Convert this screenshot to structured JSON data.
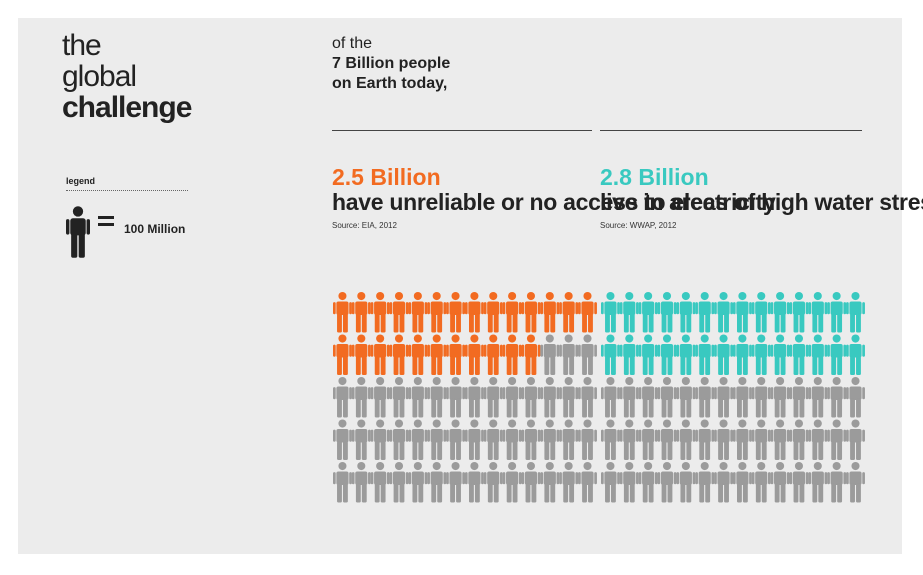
{
  "title": {
    "line1": "the",
    "line2": "global",
    "line3": "challenge"
  },
  "legend": {
    "label": "legend",
    "value": "100 Million",
    "unit_value": 100
  },
  "intro": {
    "line1": "of the",
    "line2": "7 Billion people",
    "line3": "on Earth today,"
  },
  "colors": {
    "background": "#ececec",
    "electricity": "#f26b21",
    "water": "#39c9c0",
    "inactive": "#9b9b9b",
    "icon_dark": "#222222"
  },
  "chart_data": {
    "type": "pictograph",
    "title": "the global challenge",
    "total": 7000,
    "unit": "Million people",
    "icon_value": 100,
    "rows": 5,
    "columns_per_group": 14,
    "series": [
      {
        "name": "2.5 Billion",
        "description": "have unreliable or no access to electricity",
        "source": "Source: EIA, 2012",
        "value": 2500,
        "highlighted_icons": 25,
        "color": "#f26b21"
      },
      {
        "name": "2.8 Billion",
        "description": "live in areas of high water stress",
        "source": "Source: WWAP, 2012",
        "value": 2800,
        "highlighted_icons": 28,
        "color": "#39c9c0"
      }
    ]
  }
}
